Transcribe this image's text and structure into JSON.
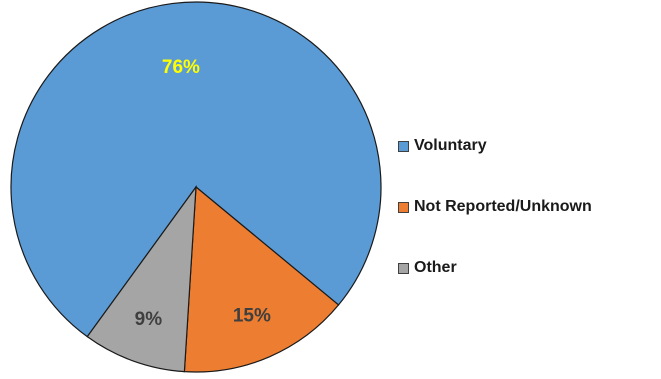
{
  "chart_data": {
    "type": "pie",
    "categories": [
      "Voluntary",
      "Not Reported/Unknown",
      "Other"
    ],
    "values": [
      76,
      15,
      9
    ],
    "labels": [
      "76%",
      "15%",
      "9%"
    ],
    "colors": [
      "#5B9BD5",
      "#ED7D31",
      "#A5A5A5"
    ],
    "label_colors": [
      "#FFFF00",
      "#3F3F3F",
      "#3F3F3F"
    ],
    "title": "",
    "legend_position": "right",
    "start_angle_deg": 216,
    "direction": "clockwise"
  }
}
